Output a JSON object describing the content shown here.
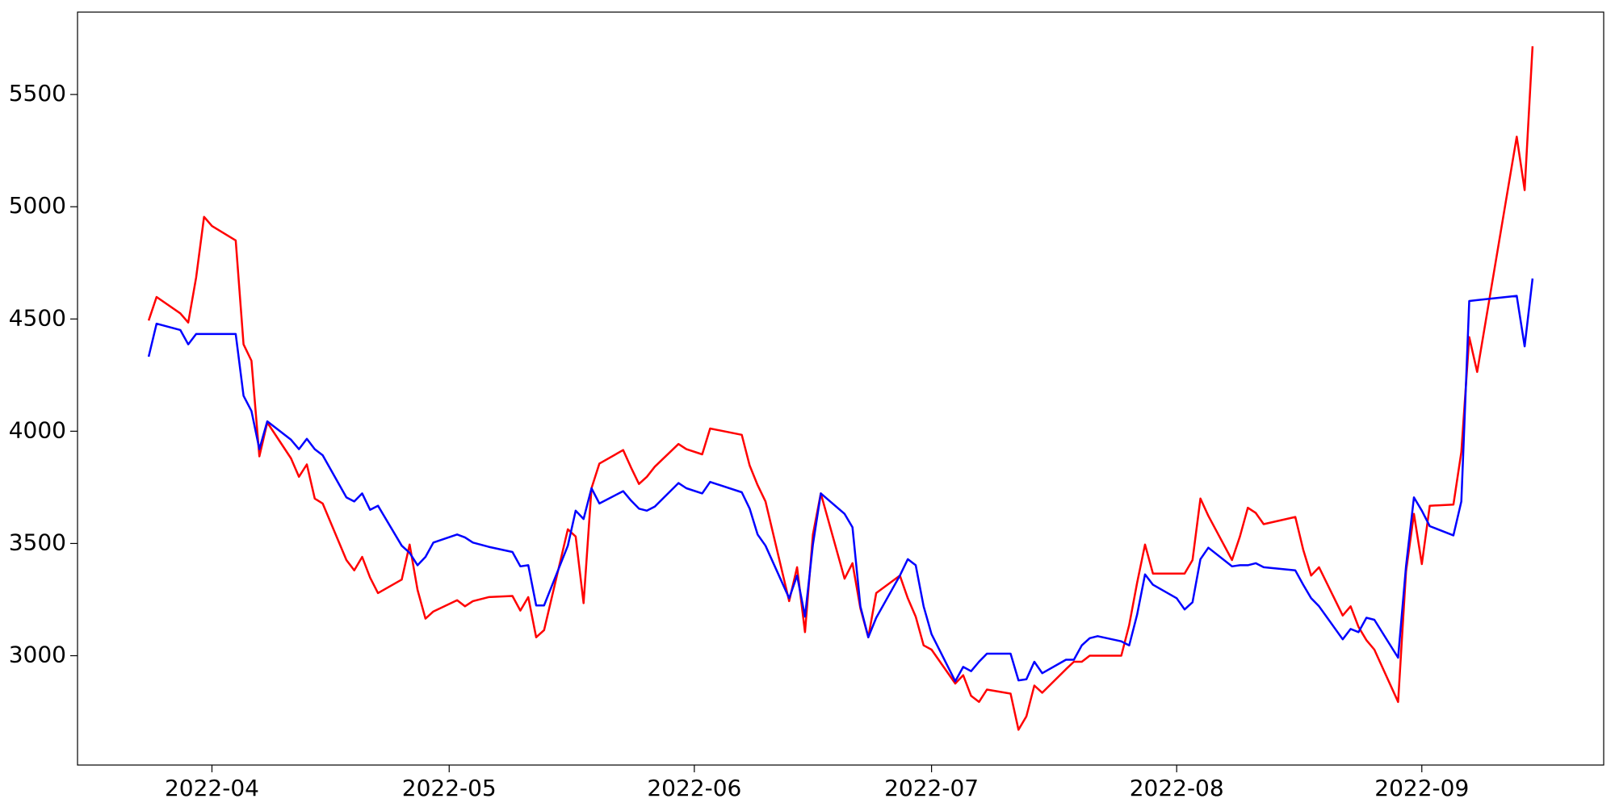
{
  "chart_data": {
    "type": "line",
    "x": [
      "2022-03-24",
      "2022-03-25",
      "2022-03-28",
      "2022-03-29",
      "2022-03-30",
      "2022-03-31",
      "2022-04-01",
      "2022-04-04",
      "2022-04-05",
      "2022-04-06",
      "2022-04-07",
      "2022-04-08",
      "2022-04-11",
      "2022-04-12",
      "2022-04-13",
      "2022-04-14",
      "2022-04-15",
      "2022-04-18",
      "2022-04-19",
      "2022-04-20",
      "2022-04-21",
      "2022-04-22",
      "2022-04-25",
      "2022-04-26",
      "2022-04-27",
      "2022-04-28",
      "2022-04-29",
      "2022-05-02",
      "2022-05-03",
      "2022-05-04",
      "2022-05-06",
      "2022-05-09",
      "2022-05-10",
      "2022-05-11",
      "2022-05-12",
      "2022-05-13",
      "2022-05-16",
      "2022-05-17",
      "2022-05-18",
      "2022-05-19",
      "2022-05-20",
      "2022-05-23",
      "2022-05-24",
      "2022-05-25",
      "2022-05-26",
      "2022-05-27",
      "2022-05-30",
      "2022-05-31",
      "2022-06-02",
      "2022-06-03",
      "2022-06-07",
      "2022-06-08",
      "2022-06-09",
      "2022-06-10",
      "2022-06-13",
      "2022-06-14",
      "2022-06-15",
      "2022-06-16",
      "2022-06-17",
      "2022-06-20",
      "2022-06-21",
      "2022-06-22",
      "2022-06-23",
      "2022-06-24",
      "2022-06-27",
      "2022-06-28",
      "2022-06-29",
      "2022-06-30",
      "2022-07-01",
      "2022-07-04",
      "2022-07-05",
      "2022-07-06",
      "2022-07-07",
      "2022-07-08",
      "2022-07-11",
      "2022-07-12",
      "2022-07-13",
      "2022-07-14",
      "2022-07-15",
      "2022-07-18",
      "2022-07-19",
      "2022-07-20",
      "2022-07-21",
      "2022-07-22",
      "2022-07-25",
      "2022-07-26",
      "2022-07-27",
      "2022-07-28",
      "2022-07-29",
      "2022-08-01",
      "2022-08-02",
      "2022-08-03",
      "2022-08-04",
      "2022-08-05",
      "2022-08-08",
      "2022-08-09",
      "2022-08-10",
      "2022-08-11",
      "2022-08-12",
      "2022-08-16",
      "2022-08-17",
      "2022-08-18",
      "2022-08-19",
      "2022-08-22",
      "2022-08-23",
      "2022-08-24",
      "2022-08-25",
      "2022-08-26",
      "2022-08-29",
      "2022-08-30",
      "2022-08-31",
      "2022-09-01",
      "2022-09-02",
      "2022-09-05",
      "2022-09-06",
      "2022-09-07",
      "2022-09-08",
      "2022-09-13",
      "2022-09-14",
      "2022-09-15"
    ],
    "series": [
      {
        "color": "red",
        "values": [
          4493,
          4598,
          4525,
          4484,
          4685,
          4955,
          4914,
          4850,
          4387,
          4314,
          3888,
          4039,
          3879,
          3797,
          3852,
          3700,
          3678,
          3426,
          3380,
          3440,
          3348,
          3279,
          3339,
          3495,
          3293,
          3165,
          3197,
          3247,
          3220,
          3243,
          3261,
          3266,
          3201,
          3261,
          3082,
          3114,
          3563,
          3531,
          3234,
          3746,
          3856,
          3916,
          3838,
          3765,
          3797,
          3842,
          3943,
          3920,
          3897,
          4012,
          3984,
          3847,
          3760,
          3687,
          3243,
          3394,
          3105,
          3540,
          3723,
          3343,
          3412,
          3211,
          3082,
          3279,
          3357,
          3256,
          3174,
          3046,
          3027,
          2876,
          2913,
          2821,
          2794,
          2849,
          2831,
          2670,
          2730,
          2867,
          2835,
          2940,
          2973,
          2973,
          3000,
          3000,
          3000,
          3137,
          3325,
          3495,
          3366,
          3366,
          3366,
          3426,
          3700,
          3623,
          3426,
          3531,
          3659,
          3636,
          3586,
          3618,
          3472,
          3357,
          3394,
          3179,
          3220,
          3128,
          3069,
          3027,
          2794,
          3375,
          3632,
          3408,
          3668,
          3673,
          3907,
          4419,
          4264,
          5312,
          5074,
          5715
        ]
      },
      {
        "color": "blue",
        "values": [
          4332,
          4479,
          4451,
          4387,
          4433,
          4433,
          4433,
          4433,
          4158,
          4090,
          3920,
          4044,
          3962,
          3920,
          3966,
          3920,
          3893,
          3705,
          3687,
          3723,
          3650,
          3668,
          3490,
          3458,
          3403,
          3440,
          3504,
          3540,
          3527,
          3504,
          3485,
          3462,
          3398,
          3403,
          3224,
          3224,
          3490,
          3646,
          3609,
          3746,
          3678,
          3733,
          3691,
          3655,
          3646,
          3664,
          3769,
          3746,
          3723,
          3774,
          3728,
          3655,
          3540,
          3490,
          3256,
          3357,
          3174,
          3495,
          3723,
          3632,
          3572,
          3220,
          3082,
          3169,
          3357,
          3430,
          3403,
          3220,
          3096,
          2886,
          2950,
          2931,
          2973,
          3009,
          3009,
          2890,
          2895,
          2973,
          2922,
          2982,
          2982,
          3046,
          3078,
          3087,
          3064,
          3046,
          3183,
          3362,
          3316,
          3256,
          3206,
          3238,
          3430,
          3481,
          3398,
          3403,
          3403,
          3412,
          3394,
          3380,
          3316,
          3256,
          3220,
          3073,
          3119,
          3105,
          3169,
          3160,
          2991,
          3398,
          3705,
          3646,
          3577,
          3536,
          3687,
          4580,
          4584,
          4603,
          4378,
          4680
        ]
      }
    ],
    "xlim": [
      "2022-03-15",
      "2022-09-24"
    ],
    "xticks": [
      {
        "value": "2022-04-01",
        "label": "2022-04"
      },
      {
        "value": "2022-05-01",
        "label": "2022-05"
      },
      {
        "value": "2022-06-01",
        "label": "2022-06"
      },
      {
        "value": "2022-07-01",
        "label": "2022-07"
      },
      {
        "value": "2022-08-01",
        "label": "2022-08"
      },
      {
        "value": "2022-09-01",
        "label": "2022-09"
      }
    ],
    "ylim": [
      2513,
      5867
    ],
    "yticks": [
      3000,
      3500,
      4000,
      4500,
      5000,
      5500
    ]
  }
}
